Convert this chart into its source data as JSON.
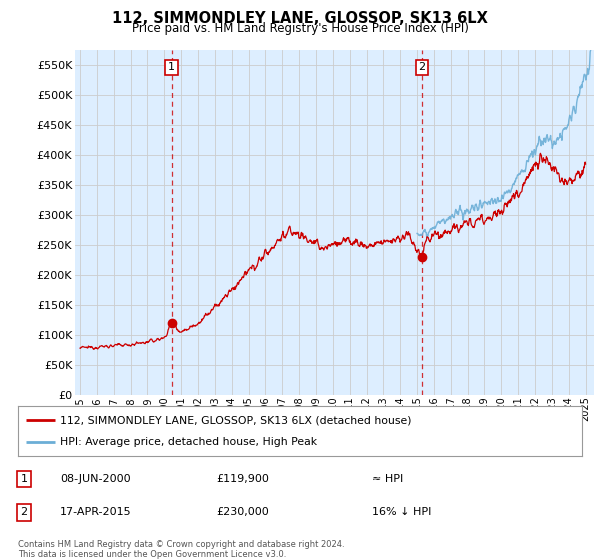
{
  "title": "112, SIMMONDLEY LANE, GLOSSOP, SK13 6LX",
  "subtitle": "Price paid vs. HM Land Registry's House Price Index (HPI)",
  "ytick_values": [
    0,
    50000,
    100000,
    150000,
    200000,
    250000,
    300000,
    350000,
    400000,
    450000,
    500000,
    550000
  ],
  "ylim": [
    0,
    575000
  ],
  "xlim_start": 1994.7,
  "xlim_end": 2025.5,
  "sale1": {
    "date_num": 2000.44,
    "price": 119900,
    "label": "1",
    "text_date": "08-JUN-2000",
    "text_price": "£119,900",
    "text_hpi": "≈ HPI"
  },
  "sale2": {
    "date_num": 2015.29,
    "price": 230000,
    "label": "2",
    "text_date": "17-APR-2015",
    "text_price": "£230,000",
    "text_hpi": "16% ↓ HPI"
  },
  "line1_color": "#cc0000",
  "line2_color": "#6baed6",
  "chart_bg": "#ddeeff",
  "legend_line1": "112, SIMMONDLEY LANE, GLOSSOP, SK13 6LX (detached house)",
  "legend_line2": "HPI: Average price, detached house, High Peak",
  "footnote": "Contains HM Land Registry data © Crown copyright and database right 2024.\nThis data is licensed under the Open Government Licence v3.0.",
  "background_color": "#ffffff",
  "grid_color": "#cccccc"
}
